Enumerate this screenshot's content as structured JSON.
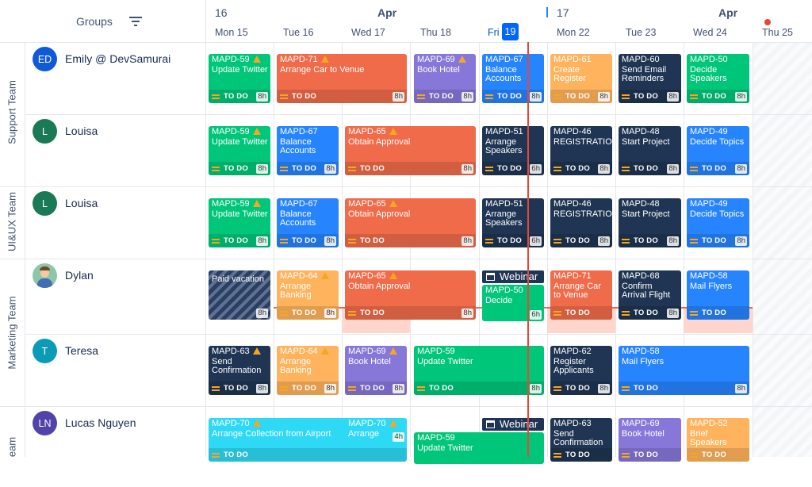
{
  "header": {
    "groups_label": "Groups",
    "filter_icon": "filter-icon",
    "week1": "16",
    "week2": "17",
    "month1": "Apr",
    "month2": "Apr",
    "days": [
      "Mon 15",
      "Tue 16",
      "Wed 17",
      "Thu 18",
      "Fri",
      "Mon 22",
      "Tue 23",
      "Wed 24",
      "Thu 25"
    ],
    "today_badge": "19"
  },
  "groups": [
    "Support Team",
    "UI&UX Team",
    "Marketing Team",
    "eam"
  ],
  "users": [
    {
      "initials": "ED",
      "name": "Emily @ DevSamurai",
      "color": "#0f5bd7"
    },
    {
      "initials": "L",
      "name": "Louisa",
      "color": "#1a7a55"
    },
    {
      "initials": "L",
      "name": "Louisa",
      "color": "#1a7a55"
    },
    {
      "initials": "",
      "name": "Dylan",
      "color": "#8fc6a8"
    },
    {
      "initials": "T",
      "name": "Teresa",
      "color": "#0b9bb5"
    },
    {
      "initials": "LN",
      "name": "Lucas Nguyen",
      "color": "#5243aa"
    }
  ],
  "status_todo": "TO DO",
  "cards": [
    {
      "key": "MAPD-59",
      "warn": true,
      "title": "Update Twitter",
      "hrs": "8h"
    },
    {
      "key": "MAPD-71",
      "warn": true,
      "title": "Arrange Car to Venue",
      "hrs": "8h"
    },
    {
      "key": "MAPD-69",
      "warn": true,
      "title": "Book Hotel",
      "hrs": "8h"
    },
    {
      "key": "MAPD-67",
      "warn": false,
      "title": "Balance Accounts",
      "hrs": "8h"
    },
    {
      "key": "MAPD-61",
      "warn": false,
      "title": "Create Register",
      "hrs": "8h"
    },
    {
      "key": "MAPD-60",
      "warn": false,
      "title": "Send Email Reminders",
      "hrs": "8h"
    },
    {
      "key": "MAPD-50",
      "warn": false,
      "title": "Decide Speakers",
      "hrs": "8h"
    },
    {
      "key": "MAPD-59",
      "warn": true,
      "title": "Update Twitter",
      "hrs": "8h"
    },
    {
      "key": "MAPD-67",
      "warn": false,
      "title": "Balance Accounts",
      "hrs": "8h"
    },
    {
      "key": "MAPD-65",
      "warn": true,
      "title": "Obtain Approval",
      "hrs": "8h"
    },
    {
      "key": "MAPD-51",
      "warn": false,
      "title": "Arrange Speakers",
      "hrs": "6h"
    },
    {
      "key": "MAPD-46",
      "warn": false,
      "title": "REGISTRATION",
      "hrs": "8h"
    },
    {
      "key": "MAPD-48",
      "warn": false,
      "title": "Start Project",
      "hrs": "8h"
    },
    {
      "key": "MAPD-49",
      "warn": false,
      "title": "Decide Topics",
      "hrs": "8h"
    },
    {
      "key": "MAPD-59",
      "warn": true,
      "title": "Update Twitter",
      "hrs": "8h"
    },
    {
      "key": "MAPD-67",
      "warn": false,
      "title": "Balance Accounts",
      "hrs": "8h"
    },
    {
      "key": "MAPD-65",
      "warn": true,
      "title": "Obtain Approval",
      "hrs": "8h"
    },
    {
      "key": "MAPD-51",
      "warn": false,
      "title": "Arrange Speakers",
      "hrs": "6h"
    },
    {
      "key": "MAPD-46",
      "warn": false,
      "title": "REGISTRATION",
      "hrs": "8h"
    },
    {
      "key": "MAPD-48",
      "warn": false,
      "title": "Start Project",
      "hrs": "8h"
    },
    {
      "key": "MAPD-49",
      "warn": false,
      "title": "Decide Topics",
      "hrs": "8h"
    },
    {
      "key": "",
      "warn": false,
      "title": "Paid vacation",
      "hrs": "8h"
    },
    {
      "key": "MAPD-64",
      "warn": true,
      "title": "Arrange Banking",
      "hrs": "8h"
    },
    {
      "key": "MAPD-65",
      "warn": true,
      "title": "Obtain Approval",
      "hrs": "8h"
    },
    {
      "key": "MAPD-50",
      "warn": false,
      "title": "Decide",
      "hrs": "6h"
    },
    {
      "key": "MAPD-71",
      "warn": false,
      "title": "Arrange Car to Venue",
      "hrs": ""
    },
    {
      "key": "MAPD-68",
      "warn": false,
      "title": "Confirm Arrival Flight",
      "hrs": "8h"
    },
    {
      "key": "MAPD-58",
      "warn": false,
      "title": "Mail Flyers",
      "hrs": ""
    },
    {
      "key": "MAPD-63",
      "warn": true,
      "title": "Send Confirmation",
      "hrs": "8h"
    },
    {
      "key": "MAPD-64",
      "warn": true,
      "title": "Arrange Banking",
      "hrs": "8h"
    },
    {
      "key": "MAPD-69",
      "warn": true,
      "title": "Book Hotel",
      "hrs": "8h"
    },
    {
      "key": "MAPD-59",
      "warn": false,
      "title": "Update Twitter",
      "hrs": "8h"
    },
    {
      "key": "MAPD-62",
      "warn": false,
      "title": "Register Applicants",
      "hrs": "8h"
    },
    {
      "key": "MAPD-58",
      "warn": false,
      "title": "Mail Flyers",
      "hrs": "8h"
    },
    {
      "key": "MAPD-70",
      "warn": true,
      "title": "Arrange Collection from Airport",
      "hrs": ""
    },
    {
      "key": "MAPD-70",
      "warn": true,
      "title": "Arrange",
      "hrs": "4h"
    },
    {
      "key": "MAPD-59",
      "warn": false,
      "title": "Update Twitter",
      "hrs": ""
    },
    {
      "key": "MAPD-63",
      "warn": false,
      "title": "Send Confirmation",
      "hrs": ""
    },
    {
      "key": "MAPD-69",
      "warn": false,
      "title": "Book Hotel",
      "hrs": ""
    },
    {
      "key": "MAPD-52",
      "warn": false,
      "title": "Brief Speakers",
      "hrs": ""
    }
  ],
  "webinar_label": "Webinar",
  "colors": {
    "green": "#00c67a",
    "orange": "#f06b4a",
    "purple": "#8777d9",
    "blue": "#2684ff",
    "navy": "#1f3553",
    "amber": "#ffb35c",
    "cyan": "#2ed9f5",
    "today_line": "#e34935"
  }
}
